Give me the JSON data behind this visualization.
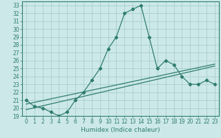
{
  "title": "",
  "xlabel": "Humidex (Indice chaleur)",
  "ylabel": "",
  "x_values": [
    0,
    1,
    2,
    3,
    4,
    5,
    6,
    7,
    8,
    9,
    10,
    11,
    12,
    13,
    14,
    15,
    16,
    17,
    18,
    19,
    20,
    21,
    22,
    23
  ],
  "humidex_line": [
    21.0,
    20.2,
    20.0,
    19.5,
    19.0,
    19.5,
    21.0,
    22.0,
    23.5,
    25.0,
    27.5,
    29.0,
    32.0,
    32.5,
    33.0,
    29.0,
    25.0,
    26.0,
    25.5,
    24.0,
    23.0,
    23.0,
    23.5,
    23.0
  ],
  "linear_line1": [
    20.5,
    20.72,
    20.94,
    21.16,
    21.38,
    21.6,
    21.82,
    22.04,
    22.26,
    22.48,
    22.7,
    22.92,
    23.14,
    23.36,
    23.58,
    23.8,
    24.02,
    24.24,
    24.46,
    24.68,
    24.9,
    25.12,
    25.34,
    25.56
  ],
  "linear_line2": [
    19.8,
    20.04,
    20.28,
    20.52,
    20.76,
    21.0,
    21.24,
    21.48,
    21.72,
    21.96,
    22.2,
    22.44,
    22.68,
    22.92,
    23.16,
    23.4,
    23.64,
    23.88,
    24.12,
    24.36,
    24.6,
    24.84,
    25.08,
    25.32
  ],
  "line_color": "#2e7d6e",
  "bg_color": "#cce8e8",
  "grid_color": "#aacece",
  "ylim": [
    19,
    33.5
  ],
  "yticks": [
    19,
    20,
    21,
    22,
    23,
    24,
    25,
    26,
    27,
    28,
    29,
    30,
    31,
    32,
    33
  ],
  "tick_fontsize": 5.5,
  "xlabel_fontsize": 6.5
}
